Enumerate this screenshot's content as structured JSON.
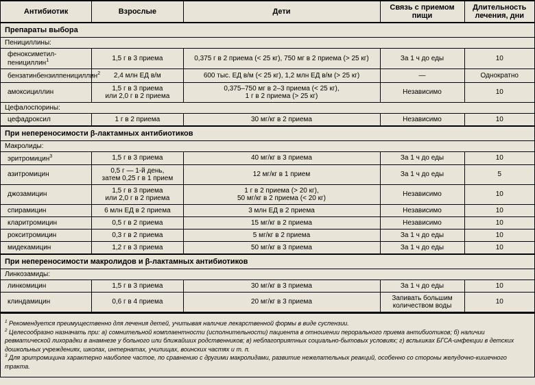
{
  "columns": {
    "antibiotic": "Антибиотик",
    "adults": "Взрослые",
    "children": "Дети",
    "food": "Связь с приемом пищи",
    "duration": "Длительность лечения, дни"
  },
  "sections": [
    {
      "title": "Препараты выбора",
      "groups": [
        {
          "label": "Пенициллины:",
          "rows": [
            {
              "name": "феноксиметил-пенициллин",
              "sup": "1",
              "adults": "1,5 г в 3 приема",
              "children": "0,375 г в 2 приема (< 25 кг), 750 мг в 2 приема (> 25 кг)",
              "food": "За 1 ч до еды",
              "duration": "10"
            },
            {
              "name": "бензатинбензилпенициллин",
              "sup": "2",
              "adults": "2,4 млн ЕД в/м",
              "children": "600 тыс. ЕД в/м (< 25 кг), 1,2 млн ЕД в/м (> 25 кг)",
              "food": "—",
              "duration": "Однократно"
            },
            {
              "name": "амоксициллин",
              "sup": "",
              "adults": "1,5 г в 3 приема\nили 2,0 г в 2 приема",
              "children": "0,375–750 мг в 2–3 приема (< 25 кг),\n1 г в 2 приема (> 25 кг)",
              "food": "Независимо",
              "duration": "10"
            }
          ]
        },
        {
          "label": "Цефалоспорины:",
          "rows": [
            {
              "name": "цефадроксил",
              "sup": "",
              "adults": "1 г в 2 приема",
              "children": "30 мг/кг в 2 приема",
              "food": "Независимо",
              "duration": "10"
            }
          ]
        }
      ]
    },
    {
      "title": "При непереносимости β-лактамных антибиотиков",
      "groups": [
        {
          "label": "Макролиды:",
          "rows": [
            {
              "name": "эритромицин",
              "sup": "3",
              "adults": "1,5 г в 3 приема",
              "children": "40 мг/кг в 3 приема",
              "food": "За 1 ч до еды",
              "duration": "10"
            },
            {
              "name": "азитромицин",
              "sup": "",
              "adults": "0,5 г — 1-й день,\nзатем 0,25 г в 1 прием",
              "children": "12 мг/кг в 1 прием",
              "food": "За 1 ч до еды",
              "duration": "5"
            },
            {
              "name": "джозамицин",
              "sup": "",
              "adults": "1,5 г в 3 приема\nили 2,0 г в 2 приема",
              "children": "1 г в 2 приема (> 20 кг),\n50 мг/кг в 2 приема (< 20 кг)",
              "food": "Независимо",
              "duration": "10"
            },
            {
              "name": "спирамицин",
              "sup": "",
              "adults": "6 млн ЕД в 2 приема",
              "children": "3 млн ЕД в 2 приема",
              "food": "Независимо",
              "duration": "10"
            },
            {
              "name": "кларитромицин",
              "sup": "",
              "adults": "0,5 г в 2 приема",
              "children": "15 мг/кг в 2 приема",
              "food": "Независимо",
              "duration": "10"
            },
            {
              "name": "рокситромицин",
              "sup": "",
              "adults": "0,3 г в 2 приема",
              "children": "5 мг/кг в 2 приема",
              "food": "За 1 ч до еды",
              "duration": "10"
            },
            {
              "name": "мидекамицин",
              "sup": "",
              "adults": "1,2 г в 3 приема",
              "children": "50 мг/кг в 3 приема",
              "food": "За 1 ч до еды",
              "duration": "10"
            }
          ]
        }
      ]
    },
    {
      "title": "При непереносимости макролидов и β-лактамных антибиотиков",
      "groups": [
        {
          "label": "Линкозамиды:",
          "rows": [
            {
              "name": "линкомицин",
              "sup": "",
              "adults": "1,5 г в 3 приема",
              "children": "30 мг/кг в 3 приема",
              "food": "За 1 ч до еды",
              "duration": "10"
            },
            {
              "name": "клиндамицин",
              "sup": "",
              "adults": "0,6 г в 4 приема",
              "children": "20 мг/кг в 3 приема",
              "food": "Запивать большим количеством воды",
              "duration": "10"
            }
          ]
        }
      ]
    }
  ],
  "footnotes": [
    "Рекомендуется преимущественно для лечения детей, учитывая наличие лекарственной формы в виде суспензии.",
    "Целесообразно назначать при: а) сомнительной комплаентности (исполнительности) пациента в отношении перорального приема антибиотиков; б) наличии ревматической лихорадки в анамнезе у больного или ближайших родственников; в) неблагоприятных социально-бытовых условиях; г) вспышках БГСА-инфекции в детских дошкольных учреждениях, школах, интернатах, училищах, воинских частях и т. п.",
    "Для эритромицина характерно наиболее частое, по сравнению с другими макролидами, развитие нежелательных реакций, особенно со стороны желудочно-кишечного тракта."
  ]
}
